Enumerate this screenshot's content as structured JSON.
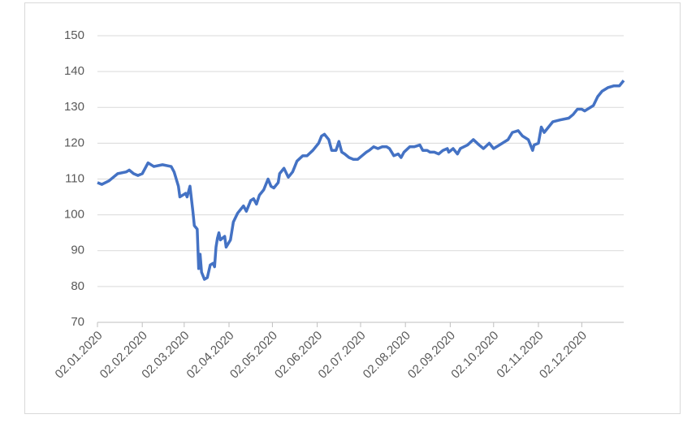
{
  "chart_data": {
    "type": "line",
    "x": [
      "2020-01-02",
      "2020-01-05",
      "2020-01-10",
      "2020-01-16",
      "2020-01-22",
      "2020-01-24",
      "2020-01-27",
      "2020-01-30",
      "2020-02-02",
      "2020-02-06",
      "2020-02-10",
      "2020-02-16",
      "2020-02-22",
      "2020-02-24",
      "2020-02-27",
      "2020-02-28",
      "2020-03-03",
      "2020-03-04",
      "2020-03-06",
      "2020-03-08",
      "2020-03-09",
      "2020-03-11",
      "2020-03-12",
      "2020-03-13",
      "2020-03-14",
      "2020-03-16",
      "2020-03-18",
      "2020-03-20",
      "2020-03-22",
      "2020-03-23",
      "2020-03-24",
      "2020-03-25",
      "2020-03-26",
      "2020-03-27",
      "2020-03-30",
      "2020-03-31",
      "2020-04-03",
      "2020-04-05",
      "2020-04-08",
      "2020-04-12",
      "2020-04-14",
      "2020-04-17",
      "2020-04-19",
      "2020-04-21",
      "2020-04-23",
      "2020-04-26",
      "2020-04-29",
      "2020-05-01",
      "2020-05-03",
      "2020-05-06",
      "2020-05-07",
      "2020-05-10",
      "2020-05-13",
      "2020-05-16",
      "2020-05-19",
      "2020-05-23",
      "2020-05-26",
      "2020-05-30",
      "2020-06-03",
      "2020-06-05",
      "2020-06-07",
      "2020-06-10",
      "2020-06-12",
      "2020-06-15",
      "2020-06-17",
      "2020-06-19",
      "2020-06-21",
      "2020-06-24",
      "2020-06-27",
      "2020-06-30",
      "2020-07-03",
      "2020-07-06",
      "2020-07-08",
      "2020-07-11",
      "2020-07-14",
      "2020-07-17",
      "2020-07-20",
      "2020-07-22",
      "2020-07-25",
      "2020-07-28",
      "2020-07-30",
      "2020-08-01",
      "2020-08-05",
      "2020-08-08",
      "2020-08-12",
      "2020-08-14",
      "2020-08-17",
      "2020-08-19",
      "2020-08-22",
      "2020-08-25",
      "2020-08-28",
      "2020-08-31",
      "2020-09-01",
      "2020-09-04",
      "2020-09-07",
      "2020-09-09",
      "2020-09-14",
      "2020-09-18",
      "2020-09-22",
      "2020-09-25",
      "2020-09-29",
      "2020-10-02",
      "2020-10-06",
      "2020-10-12",
      "2020-10-15",
      "2020-10-19",
      "2020-10-22",
      "2020-10-26",
      "2020-10-29",
      "2020-10-30",
      "2020-11-02",
      "2020-11-04",
      "2020-11-06",
      "2020-11-12",
      "2020-11-17",
      "2020-11-23",
      "2020-11-26",
      "2020-11-29",
      "2020-12-02",
      "2020-12-04",
      "2020-12-10",
      "2020-12-13",
      "2020-12-16",
      "2020-12-20",
      "2020-12-24",
      "2020-12-28",
      "2020-12-31"
    ],
    "series": [
      {
        "color": "#4472c4",
        "values": [
          109,
          108.5,
          109.5,
          111.5,
          112,
          112.5,
          111.5,
          111,
          111.5,
          114.5,
          113.5,
          114,
          113.5,
          112,
          108,
          105,
          106,
          105,
          108,
          101,
          97,
          96,
          85,
          89,
          84,
          82,
          82.5,
          86,
          86.5,
          85.5,
          91,
          93.5,
          95,
          93,
          94,
          91,
          93,
          98,
          100.5,
          102.5,
          101,
          104,
          104.5,
          103,
          105.5,
          107,
          110,
          108,
          107.5,
          109,
          111.5,
          113,
          110.5,
          112,
          115,
          116.5,
          116.5,
          118,
          120,
          122,
          122.5,
          121,
          118,
          118,
          120.5,
          117.5,
          117,
          116,
          115.5,
          115.5,
          116.5,
          117.5,
          118,
          119,
          118.5,
          119,
          119,
          118.5,
          116.5,
          117,
          116,
          117.5,
          119,
          119,
          119.5,
          118,
          118,
          117.5,
          117.5,
          117,
          118,
          118.5,
          117.5,
          118.5,
          117,
          118.5,
          119.5,
          121,
          119.5,
          118.5,
          120,
          118.5,
          119.5,
          121,
          123,
          123.5,
          122,
          121,
          118,
          119.5,
          120,
          124.5,
          123,
          126,
          126.5,
          127,
          128,
          129.5,
          129.5,
          129,
          130.5,
          133,
          134.5,
          135.5,
          136,
          136,
          137.5
        ]
      }
    ],
    "xlim": [
      "2020-01-02",
      "2020-12-31"
    ],
    "xticks": [
      {
        "value": "2020-01-02",
        "label": "02.01.2020"
      },
      {
        "value": "2020-02-02",
        "label": "02.02.2020"
      },
      {
        "value": "2020-03-02",
        "label": "02.03.2020"
      },
      {
        "value": "2020-04-02",
        "label": "02.04.2020"
      },
      {
        "value": "2020-05-02",
        "label": "02.05.2020"
      },
      {
        "value": "2020-06-02",
        "label": "02.06.2020"
      },
      {
        "value": "2020-07-02",
        "label": "02.07.2020"
      },
      {
        "value": "2020-08-02",
        "label": "02.08.2020"
      },
      {
        "value": "2020-09-02",
        "label": "02.09.2020"
      },
      {
        "value": "2020-10-02",
        "label": "02.10.2020"
      },
      {
        "value": "2020-11-02",
        "label": "02.11.2020"
      },
      {
        "value": "2020-12-02",
        "label": "02.12.2020"
      }
    ],
    "ylim": [
      70,
      150
    ],
    "yticks": [
      70,
      80,
      90,
      100,
      110,
      120,
      130,
      140,
      150
    ],
    "grid": true
  }
}
